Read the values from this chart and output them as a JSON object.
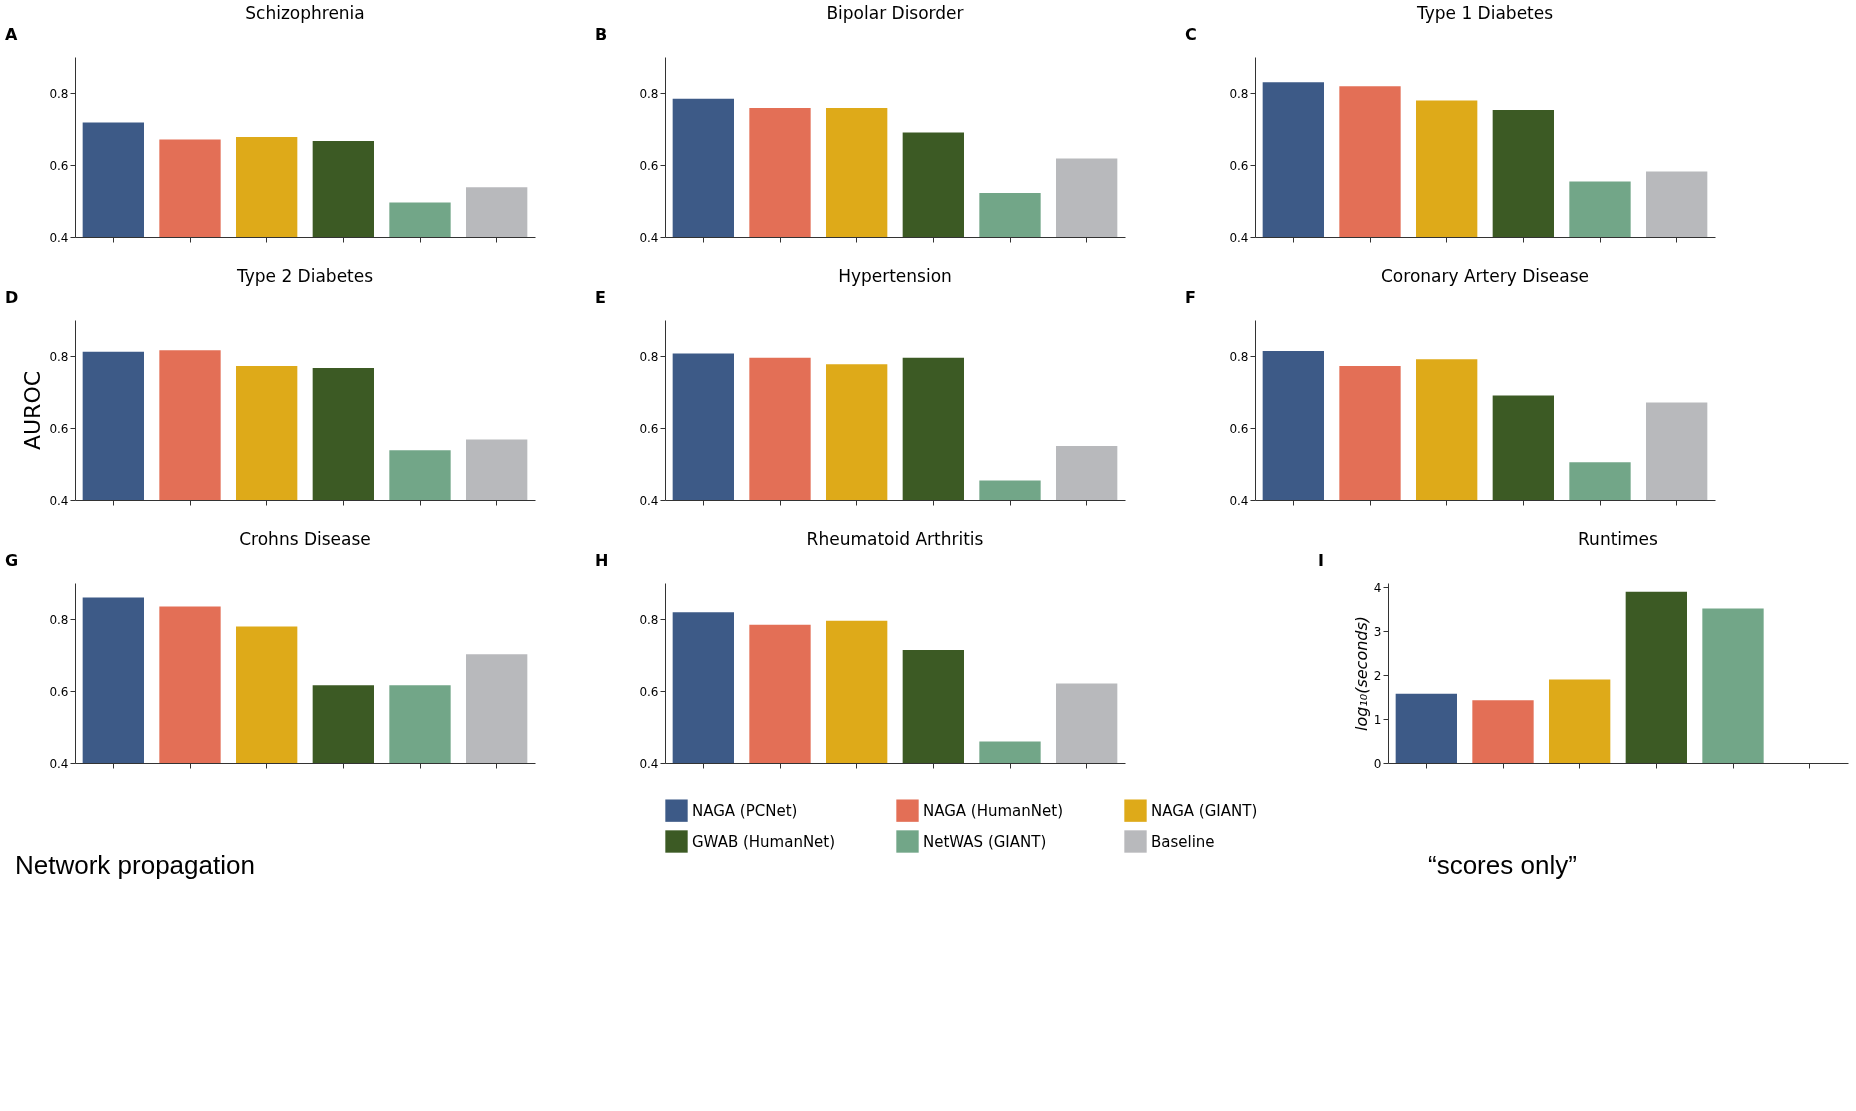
{
  "chart_data": [
    {
      "type": "bar",
      "title": "Schizophrenia",
      "annotations": [
        "A"
      ],
      "categories": [
        null
      ],
      "tick_labels": "y",
      "ylim": [
        0.4,
        0.9
      ],
      "yticks": [
        0.4,
        0.6,
        0.8
      ],
      "grid": false,
      "legend": false,
      "series": [
        {
          "color": "#3d5a87",
          "values": [
            0.718
          ]
        },
        {
          "color": "#e36f56",
          "values": [
            0.671
          ]
        },
        {
          "color": "#deaa19",
          "values": [
            0.678
          ]
        },
        {
          "color": "#3c5a24",
          "values": [
            0.667
          ]
        },
        {
          "color": "#72a688",
          "values": [
            0.496
          ]
        },
        {
          "color": "#b8b9bc",
          "values": [
            0.538
          ]
        }
      ]
    },
    {
      "type": "bar",
      "title": "Bipolar Disorder",
      "annotations": [
        "B"
      ],
      "categories": [
        null
      ],
      "tick_labels": "y",
      "ylim": [
        0.4,
        0.9
      ],
      "yticks": [
        0.4,
        0.6,
        0.8
      ],
      "grid": false,
      "legend": false,
      "series": [
        {
          "color": "#3d5a87",
          "values": [
            0.784
          ]
        },
        {
          "color": "#e36f56",
          "values": [
            0.758
          ]
        },
        {
          "color": "#deaa19",
          "values": [
            0.758
          ]
        },
        {
          "color": "#3c5a24",
          "values": [
            0.69
          ]
        },
        {
          "color": "#72a688",
          "values": [
            0.522
          ]
        },
        {
          "color": "#b8b9bc",
          "values": [
            0.618
          ]
        }
      ]
    },
    {
      "type": "bar",
      "title": "Type 1 Diabetes",
      "annotations": [
        "C"
      ],
      "categories": [
        null
      ],
      "tick_labels": "y",
      "ylim": [
        0.4,
        0.9
      ],
      "yticks": [
        0.4,
        0.6,
        0.8
      ],
      "grid": false,
      "legend": false,
      "series": [
        {
          "color": "#3d5a87",
          "values": [
            0.83
          ]
        },
        {
          "color": "#e36f56",
          "values": [
            0.819
          ]
        },
        {
          "color": "#deaa19",
          "values": [
            0.779
          ]
        },
        {
          "color": "#3c5a24",
          "values": [
            0.753
          ]
        },
        {
          "color": "#72a688",
          "values": [
            0.554
          ]
        },
        {
          "color": "#b8b9bc",
          "values": [
            0.582
          ]
        }
      ]
    },
    {
      "type": "bar",
      "title": "Type 2 Diabetes",
      "ylabel": "AUROC",
      "annotations": [
        "D"
      ],
      "categories": [
        null
      ],
      "tick_labels": "y",
      "ylim": [
        0.4,
        0.9
      ],
      "yticks": [
        0.4,
        0.6,
        0.8
      ],
      "grid": false,
      "legend": false,
      "series": [
        {
          "color": "#3d5a87",
          "values": [
            0.812
          ]
        },
        {
          "color": "#e36f56",
          "values": [
            0.816
          ]
        },
        {
          "color": "#deaa19",
          "values": [
            0.772
          ]
        },
        {
          "color": "#3c5a24",
          "values": [
            0.767
          ]
        },
        {
          "color": "#72a688",
          "values": [
            0.538
          ]
        },
        {
          "color": "#b8b9bc",
          "values": [
            0.568
          ]
        }
      ]
    },
    {
      "type": "bar",
      "title": "Hypertension",
      "annotations": [
        "E"
      ],
      "categories": [
        null
      ],
      "tick_labels": "y",
      "ylim": [
        0.4,
        0.9
      ],
      "yticks": [
        0.4,
        0.6,
        0.8
      ],
      "grid": false,
      "legend": false,
      "series": [
        {
          "color": "#3d5a87",
          "values": [
            0.807
          ]
        },
        {
          "color": "#e36f56",
          "values": [
            0.795
          ]
        },
        {
          "color": "#deaa19",
          "values": [
            0.777
          ]
        },
        {
          "color": "#3c5a24",
          "values": [
            0.795
          ]
        },
        {
          "color": "#72a688",
          "values": [
            0.454
          ]
        },
        {
          "color": "#b8b9bc",
          "values": [
            0.55
          ]
        }
      ]
    },
    {
      "type": "bar",
      "title": "Coronary Artery Disease",
      "annotations": [
        "F"
      ],
      "categories": [
        null
      ],
      "tick_labels": "y",
      "ylim": [
        0.4,
        0.9
      ],
      "yticks": [
        0.4,
        0.6,
        0.8
      ],
      "grid": false,
      "legend": false,
      "series": [
        {
          "color": "#3d5a87",
          "values": [
            0.814
          ]
        },
        {
          "color": "#e36f56",
          "values": [
            0.772
          ]
        },
        {
          "color": "#deaa19",
          "values": [
            0.791
          ]
        },
        {
          "color": "#3c5a24",
          "values": [
            0.69
          ]
        },
        {
          "color": "#72a688",
          "values": [
            0.505
          ]
        },
        {
          "color": "#b8b9bc",
          "values": [
            0.671
          ]
        }
      ]
    },
    {
      "type": "bar",
      "title": "Crohns Disease",
      "annotations": [
        "G",
        "Network propagation"
      ],
      "categories": [
        null
      ],
      "tick_labels": "y",
      "ylim": [
        0.4,
        0.9
      ],
      "yticks": [
        0.4,
        0.6,
        0.8
      ],
      "grid": false,
      "legend": false,
      "series": [
        {
          "color": "#3d5a87",
          "values": [
            0.86
          ]
        },
        {
          "color": "#e36f56",
          "values": [
            0.835
          ]
        },
        {
          "color": "#deaa19",
          "values": [
            0.779
          ]
        },
        {
          "color": "#3c5a24",
          "values": [
            0.616
          ]
        },
        {
          "color": "#72a688",
          "values": [
            0.616
          ]
        },
        {
          "color": "#b8b9bc",
          "values": [
            0.702
          ]
        }
      ]
    },
    {
      "type": "bar",
      "title": "Rheumatoid Arthritis",
      "annotations": [
        "H"
      ],
      "categories": [
        null
      ],
      "tick_labels": "y",
      "ylim": [
        0.4,
        0.9
      ],
      "yticks": [
        0.4,
        0.6,
        0.8
      ],
      "grid": false,
      "legend": "bottom",
      "series": [
        {
          "name": "NAGA (PCNet)",
          "color": "#3d5a87",
          "values": [
            0.819
          ]
        },
        {
          "name": "NAGA (HumanNet)",
          "color": "#e36f56",
          "values": [
            0.784
          ]
        },
        {
          "name": "NAGA (GIANT)",
          "color": "#deaa19",
          "values": [
            0.795
          ]
        },
        {
          "name": "GWAB (HumanNet)",
          "color": "#3c5a24",
          "values": [
            0.714
          ]
        },
        {
          "name": "NetWAS (GIANT)",
          "color": "#72a688",
          "values": [
            0.46
          ]
        },
        {
          "name": "Baseline",
          "color": "#b8b9bc",
          "values": [
            0.621
          ]
        }
      ]
    },
    {
      "type": "bar",
      "title": "Runtimes",
      "ylabel": "log₁₀(seconds)",
      "annotations": [
        "I",
        "“scores only”"
      ],
      "categories": [
        null
      ],
      "tick_labels": "y",
      "ylim": [
        0,
        4.1
      ],
      "yticks": [
        0,
        1,
        2,
        3,
        4
      ],
      "grid": false,
      "legend": false,
      "series": [
        {
          "color": "#3d5a87",
          "values": [
            1.58
          ]
        },
        {
          "color": "#e36f56",
          "values": [
            1.43
          ]
        },
        {
          "color": "#deaa19",
          "values": [
            1.9
          ]
        },
        {
          "color": "#3c5a24",
          "values": [
            3.9
          ]
        },
        {
          "color": "#72a688",
          "values": [
            3.52
          ]
        },
        {
          "color": "#b8b9bc",
          "values": [
            null
          ]
        }
      ]
    }
  ]
}
